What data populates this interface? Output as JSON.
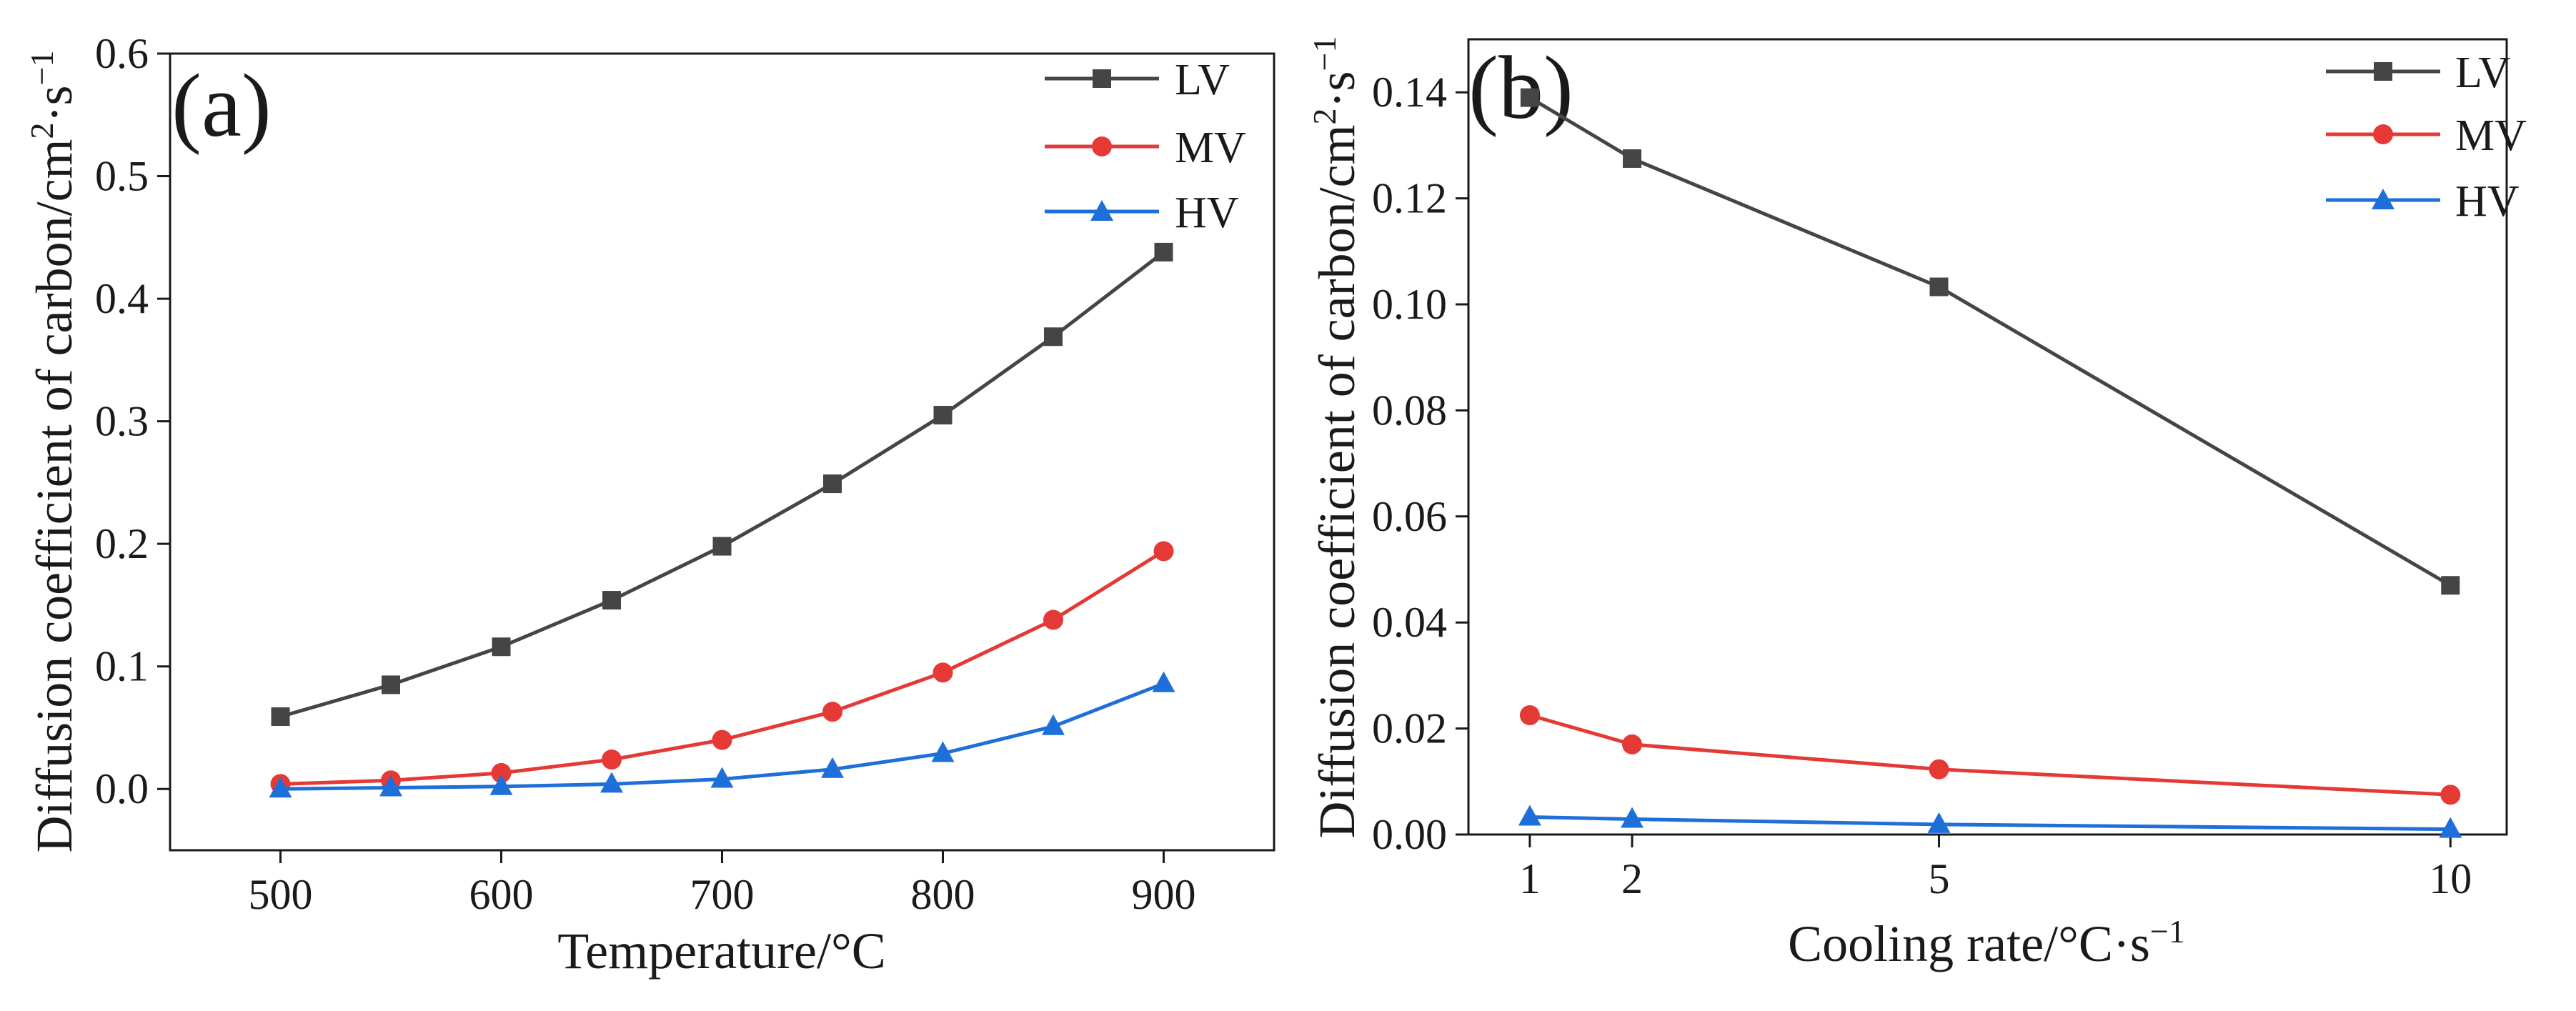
{
  "figure": {
    "description_hidden": false
  },
  "chart_data": [
    {
      "type": "line",
      "panel_label": "(a)",
      "xlabel": "Temperature/°C",
      "ylabel": "Diffusion coefficient of carbon/cm²·s⁻¹",
      "ylabel_main": "Diffusion coefficient of carbon/cm",
      "ylabel_sup1": "2",
      "ylabel_mid": "·s",
      "ylabel_sup2": "−1",
      "xlim": [
        450,
        950
      ],
      "ylim": [
        -0.05,
        0.6
      ],
      "xticks": [
        500,
        600,
        700,
        800,
        900
      ],
      "xtick_labels": [
        "500",
        "600",
        "700",
        "800",
        "900"
      ],
      "yticks": [
        0.0,
        0.1,
        0.2,
        0.3,
        0.4,
        0.5,
        0.6
      ],
      "ytick_labels": [
        "0.0",
        "0.1",
        "0.2",
        "0.3",
        "0.4",
        "0.5",
        "0.6"
      ],
      "legend_position": "top-right",
      "x": [
        500,
        550,
        600,
        650,
        700,
        750,
        800,
        850,
        900
      ],
      "series": [
        {
          "name": "LV",
          "color": "#454545",
          "marker": "square",
          "values": [
            0.059,
            0.085,
            0.116,
            0.154,
            0.198,
            0.249,
            0.305,
            0.369,
            0.438
          ]
        },
        {
          "name": "MV",
          "color": "#e53935",
          "marker": "circle",
          "values": [
            0.004,
            0.007,
            0.013,
            0.024,
            0.04,
            0.063,
            0.095,
            0.138,
            0.194
          ]
        },
        {
          "name": "HV",
          "color": "#1e6fd9",
          "marker": "triangle",
          "values": [
            0.0,
            0.001,
            0.002,
            0.004,
            0.008,
            0.016,
            0.029,
            0.051,
            0.086
          ]
        }
      ]
    },
    {
      "type": "line",
      "panel_label": "(b)",
      "xlabel": "Cooling rate/°C·s⁻¹",
      "xlabel_main": "Cooling rate/°C·s",
      "xlabel_sup": "−1",
      "ylabel": "Diffusion coefficient of carbon/cm²·s⁻¹",
      "ylabel_main": "Diffusion coefficient of carbon/cm",
      "ylabel_sup1": "2",
      "ylabel_mid": "·s",
      "ylabel_sup2": "−1",
      "xlim": [
        0.4,
        10.55
      ],
      "ylim": [
        0.0,
        0.15
      ],
      "xticks": [
        1,
        2,
        5,
        10
      ],
      "xtick_labels": [
        "1",
        "2",
        "5",
        "10"
      ],
      "yticks": [
        0.0,
        0.02,
        0.04,
        0.06,
        0.08,
        0.1,
        0.12,
        0.14
      ],
      "ytick_labels": [
        "0.00",
        "0.02",
        "0.04",
        "0.06",
        "0.08",
        "0.10",
        "0.12",
        "0.14"
      ],
      "legend_position": "top-right",
      "x": [
        1,
        2,
        5,
        10
      ],
      "series": [
        {
          "name": "LV",
          "color": "#454545",
          "marker": "square",
          "values": [
            0.139,
            0.1275,
            0.1033,
            0.047
          ]
        },
        {
          "name": "MV",
          "color": "#e53935",
          "marker": "circle",
          "values": [
            0.0225,
            0.017,
            0.0123,
            0.0075
          ]
        },
        {
          "name": "HV",
          "color": "#1e6fd9",
          "marker": "triangle",
          "values": [
            0.0033,
            0.0029,
            0.0019,
            0.001
          ]
        }
      ]
    }
  ]
}
